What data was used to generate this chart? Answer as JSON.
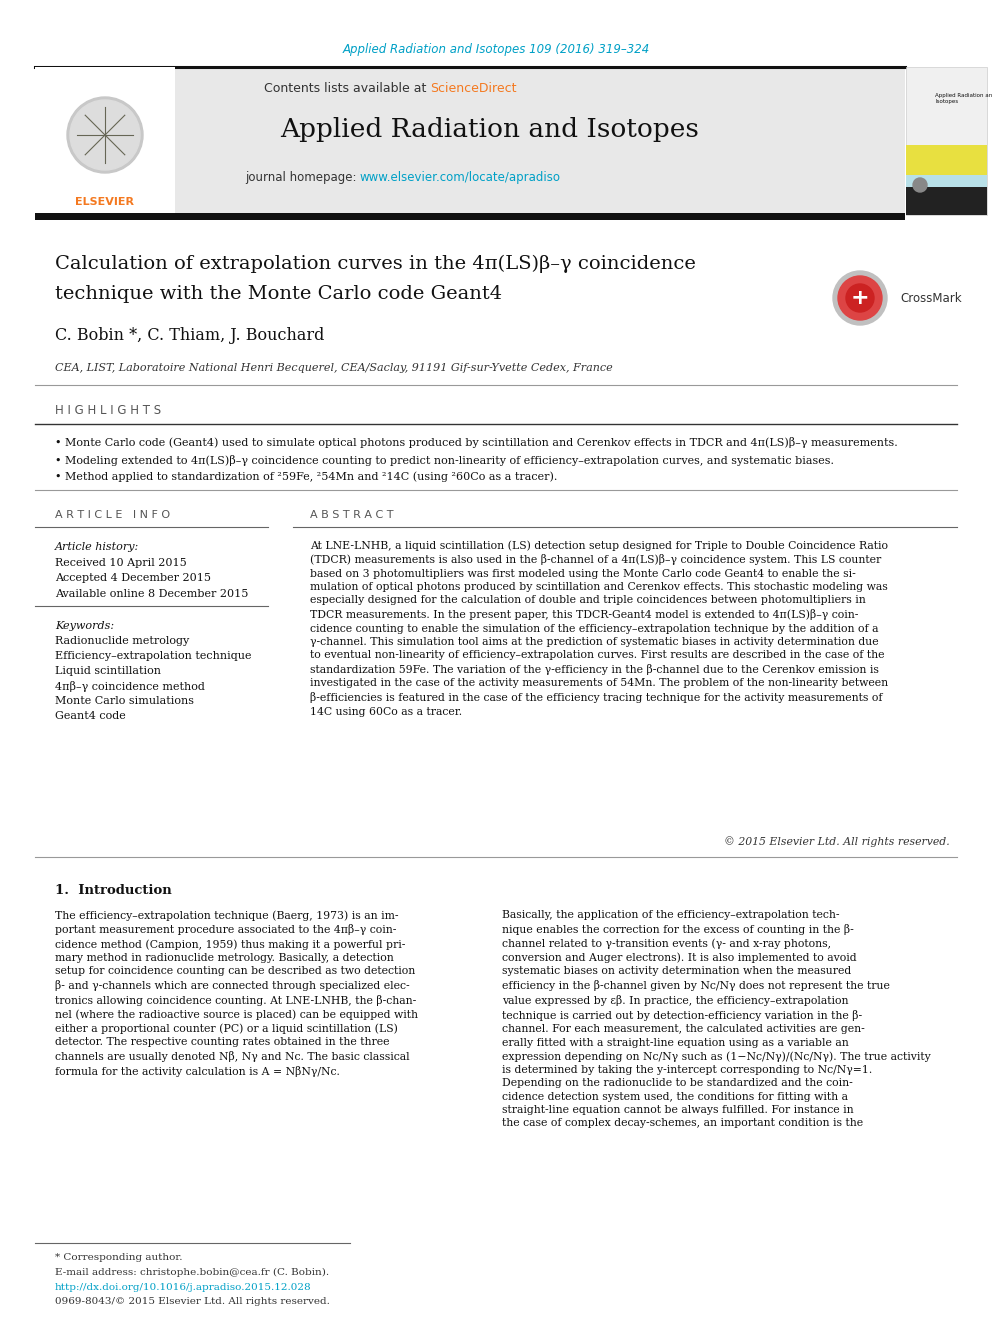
{
  "journal_ref": "Applied Radiation and Isotopes 109 (2016) 319–324",
  "journal_ref_color": "#00a0c6",
  "sciencedirect_color": "#f47920",
  "journal_title": "Applied Radiation and Isotopes",
  "journal_url": "www.elsevier.com/locate/apradiso",
  "journal_url_color": "#00a0c6",
  "header_bg": "#e8e8e8",
  "paper_title_line1": "Calculation of extrapolation curves in the 4π(LS)β–γ coincidence",
  "paper_title_line2": "technique with the Monte Carlo code Geant4",
  "authors": "C. Bobin *, C. Thiam, J. Bouchard",
  "affiliation": "CEA, LIST, Laboratoire National Henri Becquerel, CEA/Saclay, 91191 Gif-sur-Yvette Cedex, France",
  "highlights_title": "H I G H L I G H T S",
  "highlight1": "• Monte Carlo code (Geant4) used to simulate optical photons produced by scintillation and Cerenkov effects in TDCR and 4π(LS)β–γ measurements.",
  "highlight2": "• Modeling extended to 4π(LS)β–γ coincidence counting to predict non-linearity of efficiency–extrapolation curves, and systematic biases.",
  "highlight3": "• Method applied to standardization of ²59Fe, ²54Mn and ²14C (using ²60Co as a tracer).",
  "article_info_title": "A R T I C L E   I N F O",
  "abstract_title": "A B S T R A C T",
  "article_history_label": "Article history:",
  "received": "Received 10 April 2015",
  "accepted": "Accepted 4 December 2015",
  "available": "Available online 8 December 2015",
  "keywords_label": "Keywords:",
  "keyword1": "Radionuclide metrology",
  "keyword2": "Efficiency–extrapolation technique",
  "keyword3": "Liquid scintillation",
  "keyword4": "4πβ–γ coincidence method",
  "keyword5": "Monte Carlo simulations",
  "keyword6": "Geant4 code",
  "abstract_text1": "At LNE-LNHB, a liquid scintillation (LS) detection setup designed for Triple to Double Coincidence Ratio\n(TDCR) measurements is also used in the β-channel of a 4π(LS)β–γ coincidence system. This LS counter\nbased on 3 photomultipliers was first modeled using the Monte Carlo code Geant4 to enable the si-\nmulation of optical photons produced by scintillation and Cerenkov effects. This stochastic modeling was\nespecially designed for the calculation of double and triple coincidences between photomultipliers in\nTDCR measurements. In the present paper, this TDCR-Geant4 model is extended to 4π(LS)β–γ coin-\ncidence counting to enable the simulation of the efficiency–extrapolation technique by the addition of a\nγ-channel. This simulation tool aims at the prediction of systematic biases in activity determination due\nto eventual non-linearity of efficiency–extrapolation curves. First results are described in the case of the\nstandardization 59Fe. The variation of the γ-efficiency in the β-channel due to the Cerenkov emission is\ninvestigated in the case of the activity measurements of 54Mn. The problem of the non-linearity between\nβ-efficiencies is featured in the case of the efficiency tracing technique for the activity measurements of\n14C using 60Co as a tracer.",
  "copyright": "© 2015 Elsevier Ltd. All rights reserved.",
  "section1_title": "1.  Introduction",
  "intro_col1": "The efficiency–extrapolation technique (Baerg, 1973) is an im-\nportant measurement procedure associated to the 4πβ–γ coin-\ncidence method (Campion, 1959) thus making it a powerful pri-\nmary method in radionuclide metrology. Basically, a detection\nsetup for coincidence counting can be described as two detection\nβ- and γ-channels which are connected through specialized elec-\ntronics allowing coincidence counting. At LNE-LNHB, the β-chan-\nnel (where the radioactive source is placed) can be equipped with\neither a proportional counter (PC) or a liquid scintillation (LS)\ndetector. The respective counting rates obtained in the three\nchannels are usually denoted Nβ, Nγ and Nc. The basic classical\nformula for the activity calculation is A = NβNγ/Nc.",
  "intro_col2": "Basically, the application of the efficiency–extrapolation tech-\nnique enables the correction for the excess of counting in the β-\nchannel related to γ-transition events (γ- and x-ray photons,\nconversion and Auger electrons). It is also implemented to avoid\nsystematic biases on activity determination when the measured\nefficiency in the β-channel given by Nc/Nγ does not represent the true\nvalue expressed by εβ. In practice, the efficiency–extrapolation\ntechnique is carried out by detection-efficiency variation in the β-\nchannel. For each measurement, the calculated activities are gen-\nerally fitted with a straight-line equation using as a variable an\nexpression depending on Nc/Nγ such as (1−Nc/Nγ)/(Nc/Nγ). The true activity\nis determined by taking the y-intercept corresponding to Nc/Nγ=1.\nDepending on the radionuclide to be standardized and the coin-\ncidence detection system used, the conditions for fitting with a\nstraight-line equation cannot be always fulfilled. For instance in\nthe case of complex decay-schemes, an important condition is the",
  "footnote_star": "* Corresponding author.",
  "footnote_email": "E-mail address: christophe.bobin@cea.fr (C. Bobin).",
  "footnote_doi": "http://dx.doi.org/10.1016/j.apradiso.2015.12.028",
  "footnote_issn": "0969-8043/© 2015 Elsevier Ltd. All rights reserved.",
  "bg_color": "#ffffff",
  "text_color": "#000000"
}
